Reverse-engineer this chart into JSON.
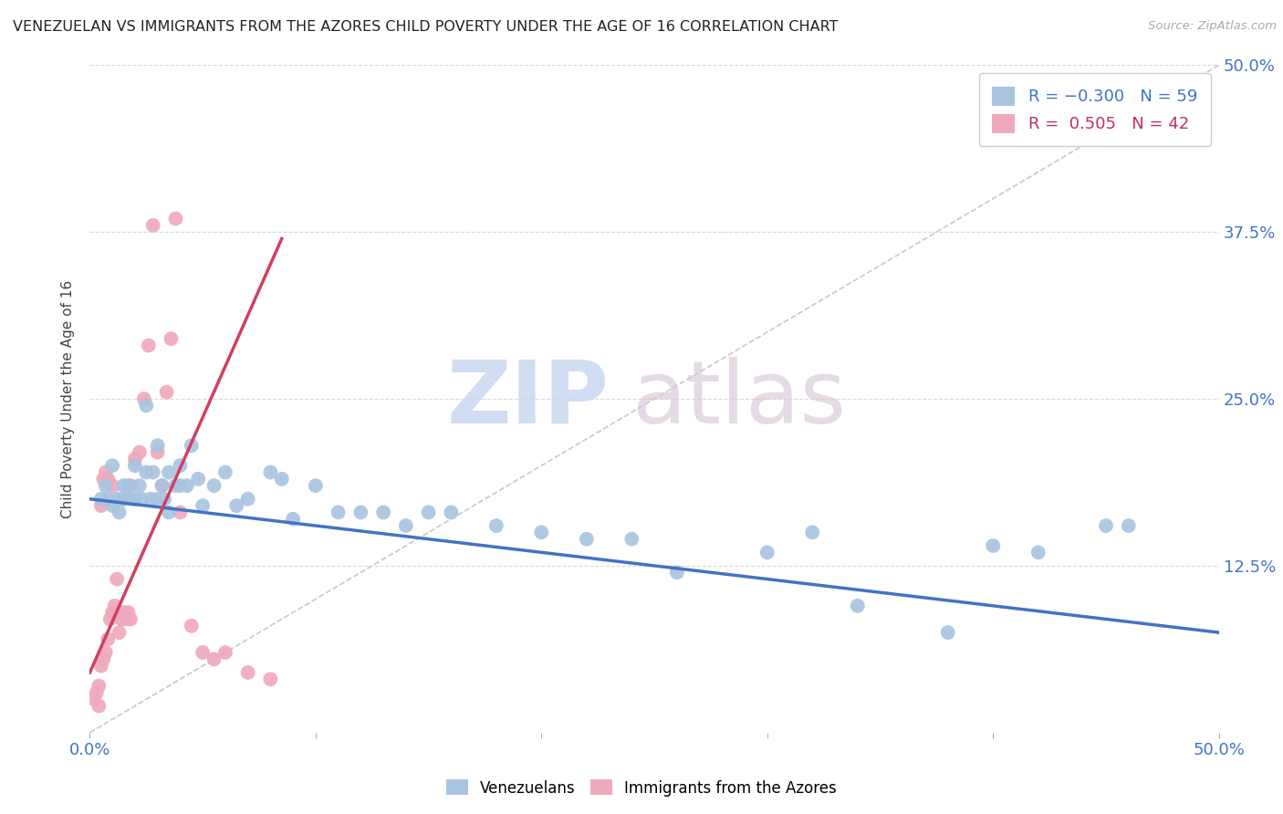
{
  "title": "VENEZUELAN VS IMMIGRANTS FROM THE AZORES CHILD POVERTY UNDER THE AGE OF 16 CORRELATION CHART",
  "source": "Source: ZipAtlas.com",
  "ylabel": "Child Poverty Under the Age of 16",
  "ytick_labels": [
    "50.0%",
    "37.5%",
    "25.0%",
    "12.5%"
  ],
  "ytick_values": [
    0.5,
    0.375,
    0.25,
    0.125
  ],
  "xtick_labels": [
    "0.0%",
    "50.0%"
  ],
  "xtick_values": [
    0.0,
    0.5
  ],
  "xlim": [
    0.0,
    0.5
  ],
  "ylim": [
    0.0,
    0.5
  ],
  "venezuelan_color": "#a8c4e0",
  "azores_color": "#f0a8bc",
  "venezuelan_line_color": "#4472c4",
  "azores_line_color": "#d04060",
  "diagonal_line_color": "#c8c8c8",
  "background_color": "#ffffff",
  "grid_color": "#d8d8d8",
  "watermark_zip_color": "#c8d8f0",
  "watermark_atlas_color": "#d8c8d8",
  "venezuelan_R": -0.3,
  "venezuelan_N": 59,
  "azores_R": 0.505,
  "azores_N": 42,
  "venezuelan_line_x0": 0.0,
  "venezuelan_line_x1": 0.5,
  "venezuelan_line_y0": 0.175,
  "venezuelan_line_y1": 0.075,
  "azores_line_x0": 0.0,
  "azores_line_x1": 0.085,
  "azores_line_y0": 0.045,
  "azores_line_y1": 0.37,
  "venezuelan_scatter_x": [
    0.005,
    0.007,
    0.008,
    0.01,
    0.01,
    0.012,
    0.013,
    0.015,
    0.015,
    0.017,
    0.018,
    0.02,
    0.02,
    0.022,
    0.023,
    0.025,
    0.025,
    0.027,
    0.028,
    0.03,
    0.03,
    0.032,
    0.033,
    0.035,
    0.035,
    0.038,
    0.04,
    0.04,
    0.043,
    0.045,
    0.048,
    0.05,
    0.055,
    0.06,
    0.065,
    0.07,
    0.08,
    0.085,
    0.09,
    0.1,
    0.11,
    0.12,
    0.13,
    0.14,
    0.15,
    0.16,
    0.18,
    0.2,
    0.22,
    0.24,
    0.26,
    0.3,
    0.32,
    0.34,
    0.38,
    0.4,
    0.42,
    0.45,
    0.46
  ],
  "venezuelan_scatter_y": [
    0.175,
    0.185,
    0.175,
    0.2,
    0.17,
    0.175,
    0.165,
    0.185,
    0.175,
    0.185,
    0.175,
    0.2,
    0.175,
    0.185,
    0.175,
    0.245,
    0.195,
    0.175,
    0.195,
    0.215,
    0.175,
    0.185,
    0.175,
    0.195,
    0.165,
    0.185,
    0.2,
    0.185,
    0.185,
    0.215,
    0.19,
    0.17,
    0.185,
    0.195,
    0.17,
    0.175,
    0.195,
    0.19,
    0.16,
    0.185,
    0.165,
    0.165,
    0.165,
    0.155,
    0.165,
    0.165,
    0.155,
    0.15,
    0.145,
    0.145,
    0.12,
    0.135,
    0.15,
    0.095,
    0.075,
    0.14,
    0.135,
    0.155,
    0.155
  ],
  "azores_scatter_x": [
    0.002,
    0.003,
    0.004,
    0.004,
    0.005,
    0.005,
    0.006,
    0.006,
    0.007,
    0.007,
    0.008,
    0.008,
    0.009,
    0.01,
    0.01,
    0.011,
    0.012,
    0.013,
    0.014,
    0.015,
    0.015,
    0.016,
    0.017,
    0.018,
    0.018,
    0.02,
    0.022,
    0.024,
    0.026,
    0.028,
    0.03,
    0.032,
    0.034,
    0.036,
    0.038,
    0.04,
    0.045,
    0.05,
    0.055,
    0.06,
    0.07,
    0.08
  ],
  "azores_scatter_y": [
    0.025,
    0.03,
    0.02,
    0.035,
    0.05,
    0.17,
    0.055,
    0.19,
    0.06,
    0.195,
    0.07,
    0.19,
    0.085,
    0.09,
    0.185,
    0.095,
    0.115,
    0.075,
    0.085,
    0.09,
    0.175,
    0.085,
    0.09,
    0.085,
    0.185,
    0.205,
    0.21,
    0.25,
    0.29,
    0.38,
    0.21,
    0.185,
    0.255,
    0.295,
    0.385,
    0.165,
    0.08,
    0.06,
    0.055,
    0.06,
    0.045,
    0.04
  ]
}
